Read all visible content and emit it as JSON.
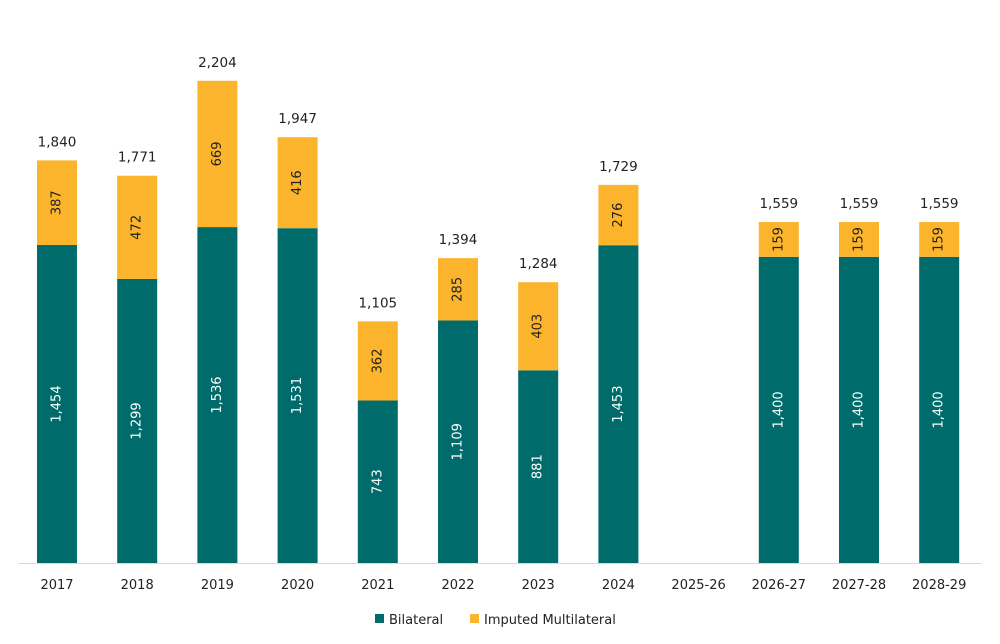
{
  "chart_data": {
    "type": "bar",
    "stacked": true,
    "categories": [
      "2017",
      "2018",
      "2019",
      "2020",
      "2021",
      "2022",
      "2023",
      "2024",
      "2025-26",
      "2026-27",
      "2027-28",
      "2028-29"
    ],
    "series": [
      {
        "name": "Bilateral",
        "color": "#006B6B",
        "values": [
          1454,
          1299,
          1536,
          1531,
          743,
          1109,
          881,
          1453,
          null,
          1400,
          1400,
          1400
        ]
      },
      {
        "name": "Imputed Multilateral",
        "color": "#FBB42C",
        "values": [
          387,
          472,
          669,
          416,
          362,
          285,
          403,
          276,
          null,
          159,
          159,
          159
        ]
      }
    ],
    "totals": [
      1840,
      1771,
      2204,
      1947,
      1105,
      1394,
      1284,
      1729,
      null,
      1559,
      1559,
      1559
    ],
    "total_labels": [
      "1,840",
      "1,771",
      "2,204",
      "1,947",
      "1,105",
      "1,394",
      "1,284",
      "1,729",
      "",
      "1,559",
      "1,559",
      "1,559"
    ],
    "bilateral_labels": [
      "1,454",
      "1,299",
      "1,536",
      "1,531",
      "743",
      "1,109",
      "881",
      "1,453",
      "",
      "1,400",
      "1,400",
      "1,400"
    ],
    "multilateral_labels": [
      "387",
      "472",
      "669",
      "416",
      "362",
      "285",
      "403",
      "276",
      "",
      "159",
      "159",
      "159"
    ],
    "ylim": [
      0,
      2204
    ],
    "grid": false,
    "legend": "bottom"
  }
}
